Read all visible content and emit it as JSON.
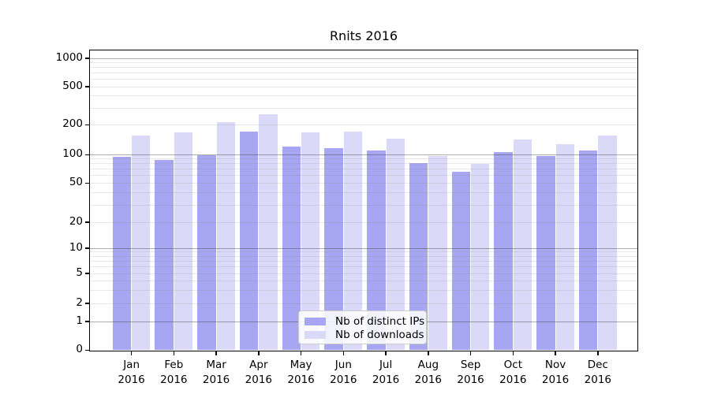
{
  "chart_data": {
    "type": "bar",
    "title": "Rnits 2016",
    "categories": [
      "Jan",
      "Feb",
      "Mar",
      "Apr",
      "May",
      "Jun",
      "Jul",
      "Aug",
      "Sep",
      "Oct",
      "Nov",
      "Dec"
    ],
    "x_year": "2016",
    "series": [
      {
        "name": "Nb of distinct IPs",
        "color": "#a6a6f2",
        "values": [
          95,
          88,
          98,
          172,
          121,
          116,
          110,
          82,
          66,
          106,
          97,
          111
        ]
      },
      {
        "name": "Nb of downloads",
        "color": "#dadaf8",
        "values": [
          157,
          168,
          215,
          260,
          167,
          172,
          145,
          96,
          80,
          143,
          127,
          157
        ]
      }
    ],
    "yscale": "symlog",
    "y_ticks": [
      0,
      1,
      2,
      5,
      10,
      20,
      50,
      100,
      200,
      500,
      1000
    ],
    "ylim": [
      0,
      1200
    ],
    "xlabel": "",
    "ylabel": "",
    "grid": true,
    "legend_position": "lower-center"
  }
}
